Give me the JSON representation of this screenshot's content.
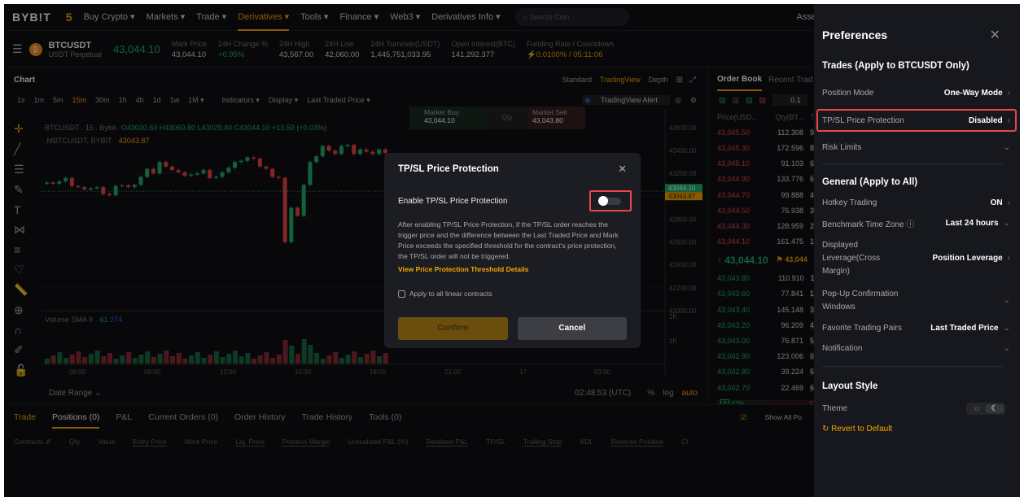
{
  "nav": {
    "logo": "BYB!T",
    "items": [
      "Buy Crypto ▾",
      "Markets ▾",
      "Trade ▾",
      "Derivatives ▾",
      "Tools ▾",
      "Finance ▾",
      "Web3 ▾",
      "Derivatives Info ▾"
    ],
    "active": 3,
    "search_placeholder": "Search Coin",
    "right_text": "Asse"
  },
  "ticker": {
    "symbol": "BTCUSDT",
    "type": "USDT Perpetual",
    "last_price": "43,044.10",
    "stats": [
      {
        "label": "Mark Price",
        "value": "43,044.10"
      },
      {
        "label": "24H Change %",
        "value": "+0.95%"
      },
      {
        "label": "24H High",
        "value": "43,567.00"
      },
      {
        "label": "24H Low",
        "value": "42,060.00"
      },
      {
        "label": "24H Turnover(USDT)",
        "value": "1,445,751,033.95"
      },
      {
        "label": "Open Interest(BTC)",
        "value": "141,292.377"
      },
      {
        "label": "Funding Rate / Countdown",
        "value": "⚡0.0100% / 05:11:06"
      }
    ]
  },
  "chart": {
    "title": "Chart",
    "views": [
      "Standard",
      "TradingView",
      "Depth"
    ],
    "active_view": "TradingView",
    "timeframes": [
      "1s",
      "1m",
      "5m",
      "15m",
      "30m",
      "1h",
      "4h",
      "1d",
      "1w",
      "1M ▾"
    ],
    "active_tf": "15m",
    "tools": [
      "Indicators ▾",
      "Display ▾",
      "Last Traded Price ▾"
    ],
    "alert": "TradingView Alert",
    "market_buy": "Market Buy",
    "market_buy_price": "43,044.10",
    "qty": "Qty",
    "market_sell": "Market Sell",
    "market_sell_price": "43,043.80",
    "legend1": "BTCUSDT . 15 . Bybit",
    "ohlc": "O43030.60 H43060.80 L43029.40 C43044.10 +13.50 (+0.03%)",
    "legend2": ".MBTCUSDT, BYBIT",
    "mark_value": "43043.87",
    "volume_label": "Volume SMA 9",
    "vol_v1": "61",
    "vol_v2": "274",
    "y_ticks": [
      "43600.00",
      "43400.00",
      "43200.00",
      "42800.00",
      "42600.00",
      "42400.00",
      "42200.00",
      "42000.00"
    ],
    "last_tag": "43044.10",
    "mark_tag": "43043.87",
    "vol_ticks": [
      "2K",
      "1K"
    ],
    "x_ticks": [
      "06:00",
      "09:00",
      "12:00",
      "15:00",
      "18:00",
      "21:00",
      "17",
      "03:00"
    ],
    "date_range": "Date Range ⌄",
    "clock": "02:48:53 (UTC)",
    "pct": "%",
    "log": "log",
    "auto": "auto",
    "closes": [
      43120,
      43110,
      43130,
      43160,
      43090,
      43080,
      43060,
      43070,
      43080,
      43020,
      43010,
      43090,
      43095,
      43080,
      43100,
      43170,
      43240,
      43200,
      43300,
      43260,
      43230,
      43210,
      43180,
      43190,
      43200,
      43230,
      43160,
      43170,
      43210,
      43250,
      43300,
      43310,
      43340,
      43330,
      43260,
      43240,
      43170,
      43160,
      42600,
      42900,
      42830,
      43100,
      43300,
      43350,
      43440,
      43400,
      43370,
      43440,
      43450,
      43370,
      43410,
      43390,
      43370,
      43410,
      43380
    ]
  },
  "orderbook": {
    "tabs": [
      "Order Book",
      "Recent Trad"
    ],
    "tick": "0.1",
    "headers": [
      "Price(USD...",
      "Qty(BT...",
      "To"
    ],
    "asks": [
      [
        "43,045.50",
        "112.308",
        "97"
      ],
      [
        "43,045.30",
        "172.596",
        "86"
      ],
      [
        "43,045.10",
        "91.103",
        "69"
      ],
      [
        "43,044.90",
        "133.776",
        "60"
      ],
      [
        "43,044.70",
        "99.888",
        "46"
      ],
      [
        "43,044.50",
        "76.938",
        "36"
      ],
      [
        "43,044.30",
        "128.959",
        "29"
      ],
      [
        "43,044.10",
        "161.475",
        "16"
      ]
    ],
    "mid": "↑ 43,044.10",
    "mid_mark": "43,044",
    "bids": [
      [
        "43,043.80",
        "110.910",
        "11"
      ],
      [
        "43,043.60",
        "77.841",
        "18"
      ],
      [
        "43,043.40",
        "145.148",
        "33"
      ],
      [
        "43,043.20",
        "96.209",
        "43"
      ],
      [
        "43,043.00",
        "76.871",
        "50"
      ],
      [
        "43,042.90",
        "123.006",
        "62"
      ],
      [
        "43,042.80",
        "39.224",
        "66"
      ],
      [
        "43,042.70",
        "22.469",
        "69"
      ]
    ],
    "buy_pct": "47%",
    "sell_pct": "53"
  },
  "bottom": {
    "tabs": [
      "Trade",
      "Positions (0)",
      "P&L",
      "Current Orders (0)",
      "Order History",
      "Trade History",
      "Tools (0)"
    ],
    "show_all": "Show All Po",
    "columns": [
      "Contracts ⇵",
      "Qty",
      "Value",
      "Entry Price",
      "Mark Price",
      "Liq. Price",
      "Position Margin",
      "Unrealized P&L (%)",
      "Realized P&L",
      "TP/SL",
      "Trailing Stop",
      "ADL",
      "Reverse Position",
      "Cl"
    ]
  },
  "modal": {
    "title": "TP/SL Price Protection",
    "toggle_label": "Enable TP/SL Price Protection",
    "toggle_on": false,
    "description": "After enabling TP/SL Price Protection, if the TP/SL order reaches the trigger price and the difference between the Last Traded Price and Mark Price exceeds the specified threshold for the contract's price protection, the TP/SL order will not be triggered.",
    "link": "View Price Protection Threshold Details",
    "checkbox": "Apply to all linear contracts",
    "confirm": "Confirm",
    "cancel": "Cancel"
  },
  "prefs": {
    "title": "Preferences",
    "section1": "Trades (Apply to BTCUSDT Only)",
    "position_mode": {
      "label": "Position Mode",
      "value": "One-Way Mode"
    },
    "tpsl": {
      "label": "TP/SL Price Protection",
      "value": "Disabled"
    },
    "risk": {
      "label": "Risk Limits"
    },
    "section2": "General (Apply to All)",
    "hotkey": {
      "label": "Hotkey Trading",
      "value": "ON"
    },
    "timezone": {
      "label": "Benchmark Time Zone",
      "value": "Last 24 hours"
    },
    "leverage": {
      "label": "Displayed Leverage(Cross Margin)",
      "value": "Position Leverage"
    },
    "popup": {
      "label": "Pop-Up Confirmation Windows"
    },
    "favorite": {
      "label": "Favorite Trading Pairs",
      "value": "Last Traded Price"
    },
    "notification": {
      "label": "Notification"
    },
    "section3": "Layout Style",
    "theme": "Theme",
    "revert": "Revert to Default"
  },
  "colors": {
    "accent": "#f7a600",
    "up": "#20b26c",
    "down": "#ef454a",
    "highlight": "#e8474b"
  }
}
